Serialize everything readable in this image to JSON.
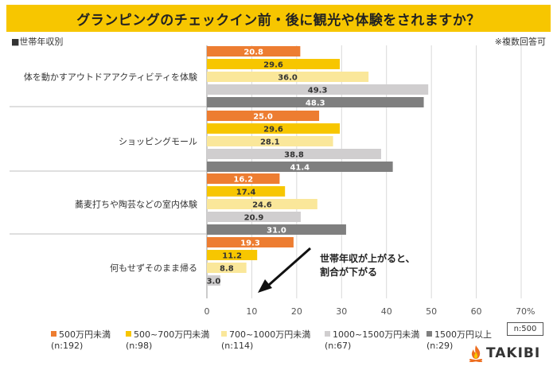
{
  "chart_data": {
    "type": "bar",
    "orientation": "horizontal",
    "title": "グランピングのチェックイン前・後に観光や体験をされますか？",
    "subtitle": "■世帯年収別",
    "note": "※複数回答可",
    "categories": [
      "体を動かすアウトドアアクティビティを体験",
      "ショッピングモール",
      "蕎麦打ちや陶芸などの室内体験",
      "何もせずそのまま帰る"
    ],
    "series": [
      {
        "name": "500万円未満",
        "n": "(n:192)",
        "color": "#ed7d31",
        "label_color": "#ffffff",
        "values": [
          20.8,
          25.0,
          16.2,
          19.3
        ]
      },
      {
        "name": "500~700万円未満",
        "n": "(n:98)",
        "color": "#f7c600",
        "label_color": "#333333",
        "values": [
          29.6,
          29.6,
          17.4,
          11.2
        ]
      },
      {
        "name": "700~1000万円未満",
        "n": "(n:114)",
        "color": "#fae79a",
        "label_color": "#333333",
        "values": [
          36.0,
          28.1,
          24.6,
          8.8
        ]
      },
      {
        "name": "1000~1500万円未満",
        "n": "(n:67)",
        "color": "#d0cecf",
        "label_color": "#333333",
        "values": [
          49.3,
          38.8,
          20.9,
          3.0
        ]
      },
      {
        "name": "1500万円以上",
        "n": "(n:29)",
        "color": "#7f7f7f",
        "label_color": "#ffffff",
        "values": [
          48.3,
          41.4,
          31.0,
          null
        ]
      }
    ],
    "xlim": [
      0,
      70
    ],
    "xticks": [
      "0",
      "10",
      "20",
      "30",
      "40",
      "50",
      "60",
      "70"
    ],
    "x_unit": "%",
    "grid": true,
    "legend": "bottom"
  },
  "annotation": {
    "line1": "世帯年収が上がると、",
    "line2": "割合が下がる"
  },
  "n_total": "n:500",
  "logo": {
    "text": "TAKIBI",
    "icon": "campfire-icon"
  }
}
